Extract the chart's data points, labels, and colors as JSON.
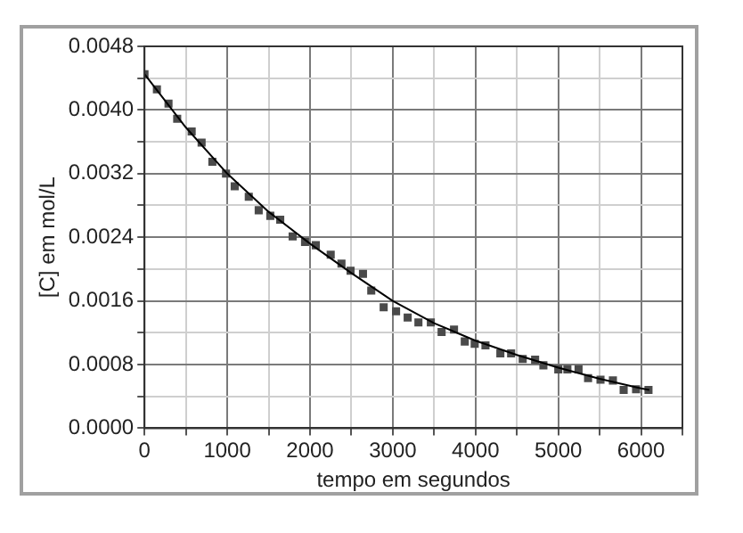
{
  "chart_data": {
    "type": "scatter",
    "xlabel": "tempo em segundos",
    "ylabel": "[C] em mol/L",
    "xlim": [
      0,
      6500
    ],
    "ylim": [
      0,
      0.0048
    ],
    "xticks": [
      0,
      {
        "value": 500,
        "label": null
      },
      1000,
      {
        "value": 1500,
        "label": null
      },
      2000,
      {
        "value": 2500,
        "label": null
      },
      3000,
      {
        "value": 3500,
        "label": null
      },
      4000,
      {
        "value": 4500,
        "label": null
      },
      5000,
      {
        "value": 5500,
        "label": null
      },
      6000,
      {
        "value": 6500,
        "label": null
      }
    ],
    "yticks": [
      {
        "value": 0,
        "label": "0.0000"
      },
      {
        "value": 0.0004,
        "label": null
      },
      {
        "value": 0.0008,
        "label": "0.0008"
      },
      {
        "value": 0.0012,
        "label": null
      },
      {
        "value": 0.0016,
        "label": "0.0016"
      },
      {
        "value": 0.002,
        "label": null
      },
      {
        "value": 0.0024,
        "label": "0.0024"
      },
      {
        "value": 0.0028,
        "label": null
      },
      {
        "value": 0.0032,
        "label": "0.0032"
      },
      {
        "value": 0.0036,
        "label": null
      },
      {
        "value": 0.004,
        "label": "0.0040"
      },
      {
        "value": 0.0044,
        "label": null
      },
      {
        "value": 0.0048,
        "label": "0.0048"
      }
    ],
    "grid": true,
    "legend": false,
    "marker": "square",
    "series": [
      {
        "type": "scatter",
        "color": "#4a4a4a",
        "x": [
          0,
          150,
          290,
          395,
          570,
          690,
          820,
          985,
          1090,
          1260,
          1380,
          1520,
          1640,
          1790,
          1940,
          2070,
          2250,
          2380,
          2490,
          2640,
          2740,
          2890,
          3040,
          3180,
          3310,
          3460,
          3590,
          3740,
          3870,
          3990,
          4120,
          4300,
          4430,
          4570,
          4720,
          4820,
          5000,
          5110,
          5245,
          5360,
          5510,
          5660,
          5790,
          5940,
          6090
        ],
        "values": [
          0.00445,
          0.00426,
          0.00408,
          0.00389,
          0.00373,
          0.00359,
          0.00335,
          0.0032,
          0.00304,
          0.00291,
          0.00274,
          0.00267,
          0.00262,
          0.00241,
          0.00234,
          0.0023,
          0.00218,
          0.00207,
          0.00198,
          0.00194,
          0.00173,
          0.00152,
          0.00147,
          0.00139,
          0.00133,
          0.00133,
          0.00121,
          0.00124,
          0.00109,
          0.00106,
          0.00104,
          0.00094,
          0.00094,
          0.00087,
          0.00086,
          0.00079,
          0.00074,
          0.00074,
          0.00074,
          0.00063,
          0.00061,
          0.0006,
          0.00048,
          0.00049,
          0.00048
        ]
      },
      {
        "type": "line",
        "color": "#000000",
        "marker": "none",
        "line_style": "solid",
        "x": [
          0,
          500,
          1000,
          1500,
          2000,
          2500,
          3000,
          3500,
          4000,
          4500,
          5000,
          5500,
          6000,
          6100
        ],
        "values": [
          0.00445,
          0.00378,
          0.0032,
          0.00272,
          0.00232,
          0.00195,
          0.0016,
          0.00132,
          0.0011,
          0.00092,
          0.00076,
          0.00062,
          0.0005,
          0.00048
        ]
      }
    ]
  }
}
